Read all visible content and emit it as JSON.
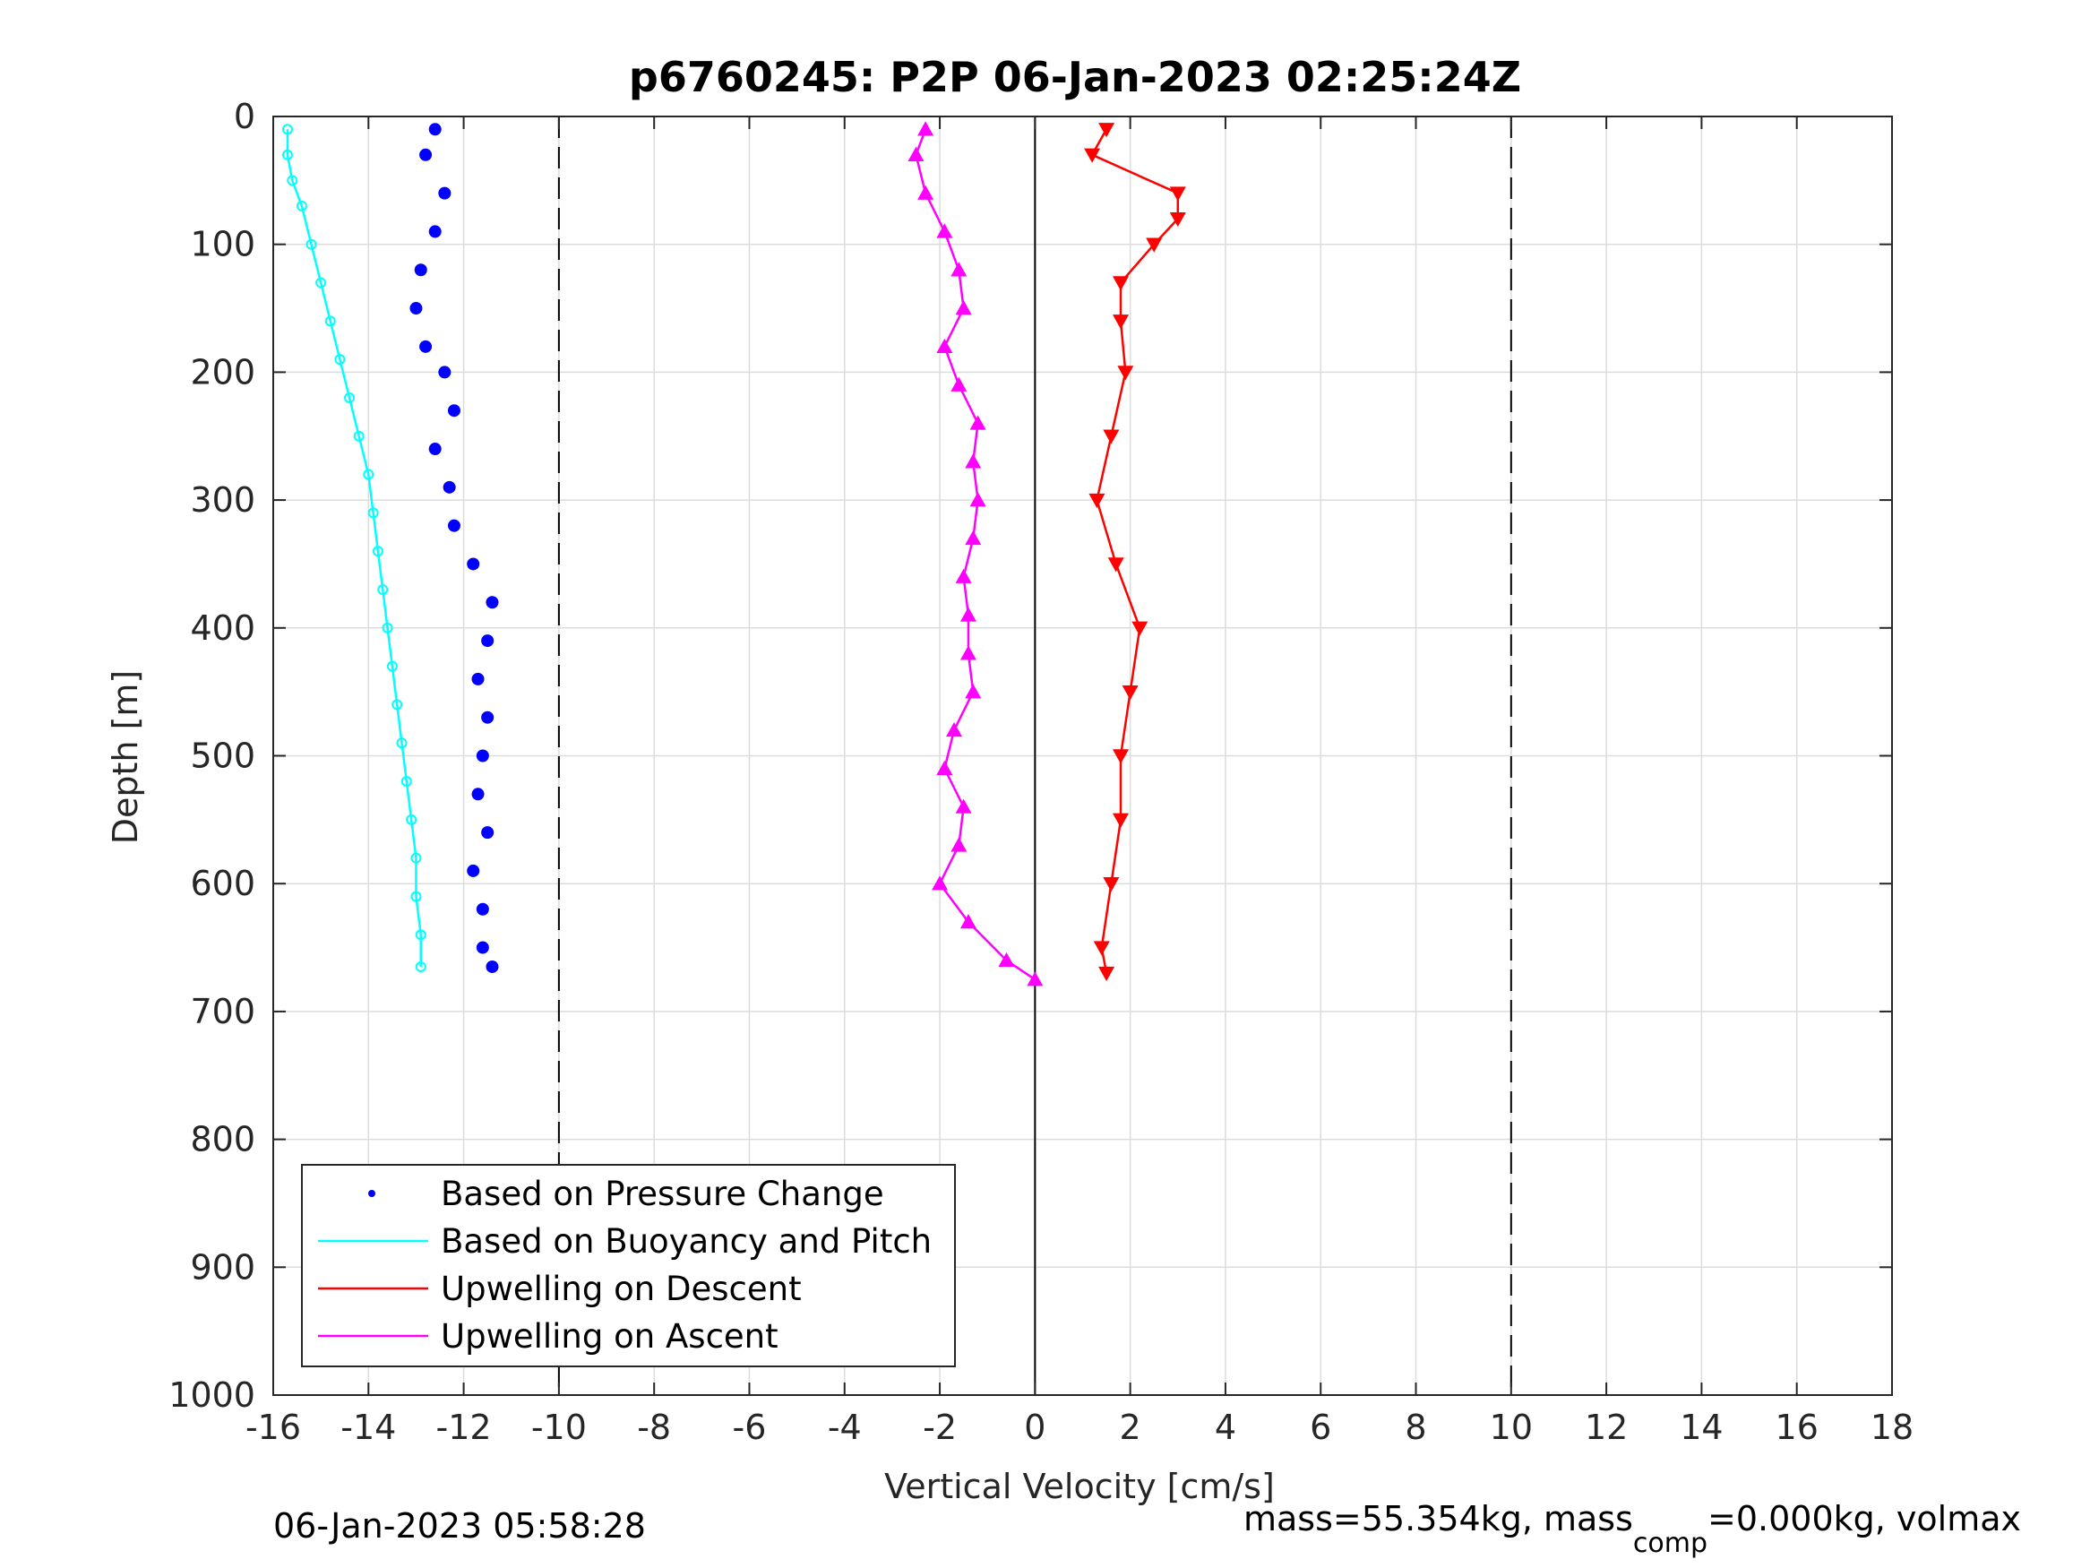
{
  "chart_data": {
    "type": "scatter",
    "title": "p6760245: P2P 06-Jan-2023 02:25:24Z",
    "xlabel": "Vertical Velocity [cm/s]",
    "ylabel": "Depth [m]",
    "xlim": [
      -16,
      18
    ],
    "ylim": [
      0,
      1000
    ],
    "y_reversed": true,
    "grid": true,
    "xticks": [
      -16,
      -14,
      -12,
      -10,
      -8,
      -6,
      -4,
      -2,
      0,
      2,
      4,
      6,
      8,
      10,
      12,
      14,
      16,
      18
    ],
    "yticks": [
      0,
      100,
      200,
      300,
      400,
      500,
      600,
      700,
      800,
      900,
      1000
    ],
    "reference_lines": [
      {
        "x": -10,
        "style": "dashed"
      },
      {
        "x": 0,
        "style": "solid"
      },
      {
        "x": 10,
        "style": "dashed"
      }
    ],
    "legend_position": "bottom-left",
    "series": [
      {
        "name": "Based on Pressure Change",
        "marker": "dot",
        "color": "#0000ff",
        "depth": [
          10,
          30,
          60,
          90,
          120,
          150,
          180,
          200,
          230,
          260,
          290,
          320,
          350,
          380,
          410,
          440,
          470,
          500,
          530,
          560,
          590,
          620,
          650,
          665
        ],
        "values": [
          -12.6,
          -12.8,
          -12.4,
          -12.6,
          -12.9,
          -13.0,
          -12.8,
          -12.4,
          -12.2,
          -12.6,
          -12.3,
          -12.2,
          -11.8,
          -11.4,
          -11.5,
          -11.7,
          -11.5,
          -11.6,
          -11.7,
          -11.5,
          -11.8,
          -11.6,
          -11.6,
          -11.4
        ]
      },
      {
        "name": "Based on Buoyancy and Pitch",
        "marker": "line",
        "color": "#00ffff",
        "depth": [
          10,
          30,
          50,
          70,
          100,
          130,
          160,
          190,
          220,
          250,
          280,
          310,
          340,
          370,
          400,
          430,
          460,
          490,
          520,
          550,
          580,
          610,
          640,
          665
        ],
        "values": [
          -15.7,
          -15.7,
          -15.6,
          -15.4,
          -15.2,
          -15.0,
          -14.8,
          -14.6,
          -14.4,
          -14.2,
          -14.0,
          -13.9,
          -13.8,
          -13.7,
          -13.6,
          -13.5,
          -13.4,
          -13.3,
          -13.2,
          -13.1,
          -13.0,
          -13.0,
          -12.9,
          -12.9
        ]
      },
      {
        "name": "Upwelling on Descent",
        "marker": "triangle-down",
        "color": "#ff0000",
        "depth": [
          10,
          30,
          60,
          80,
          100,
          130,
          160,
          200,
          250,
          300,
          350,
          400,
          450,
          500,
          550,
          600,
          650,
          670
        ],
        "values": [
          1.5,
          1.2,
          3.0,
          3.0,
          2.5,
          1.8,
          1.8,
          1.9,
          1.6,
          1.3,
          1.7,
          2.2,
          2.0,
          1.8,
          1.8,
          1.6,
          1.4,
          1.5
        ]
      },
      {
        "name": "Upwelling on Ascent",
        "marker": "triangle-up",
        "color": "#ff00ff",
        "depth": [
          10,
          30,
          60,
          90,
          120,
          150,
          180,
          210,
          240,
          270,
          300,
          330,
          360,
          390,
          420,
          450,
          480,
          510,
          540,
          570,
          600,
          630,
          660,
          675
        ],
        "values": [
          -2.3,
          -2.5,
          -2.3,
          -1.9,
          -1.6,
          -1.5,
          -1.9,
          -1.6,
          -1.2,
          -1.3,
          -1.2,
          -1.3,
          -1.5,
          -1.4,
          -1.4,
          -1.3,
          -1.7,
          -1.9,
          -1.5,
          -1.6,
          -2.0,
          -1.4,
          -0.6,
          0.0
        ]
      }
    ]
  },
  "footer": {
    "timestamp": "06-Jan-2023 05:58:28",
    "mass_prefix": "mass=55.354kg, mass",
    "mass_sub": "comp",
    "mass_suffix": "=0.000kg, volmax"
  }
}
